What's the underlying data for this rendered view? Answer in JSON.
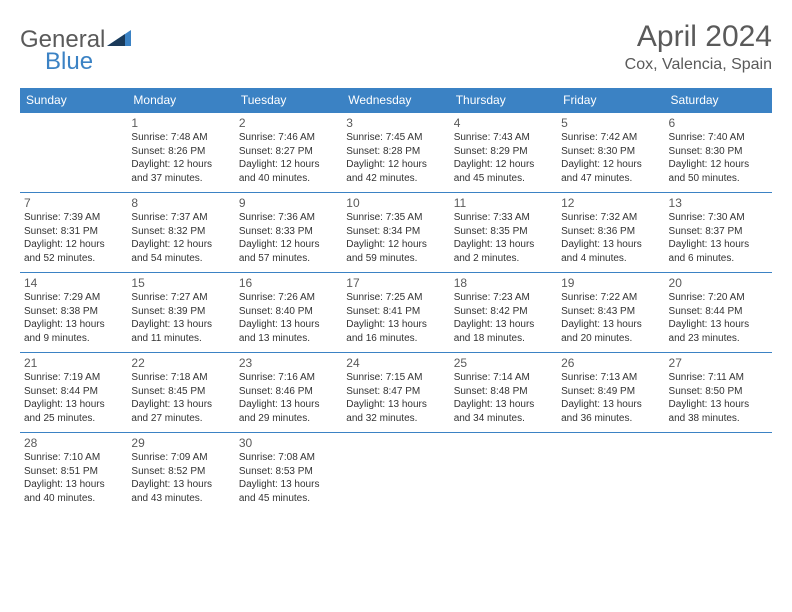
{
  "logo": {
    "text1": "General",
    "text2": "Blue"
  },
  "title": "April 2024",
  "location": "Cox, Valencia, Spain",
  "colors": {
    "accent": "#3b82c4",
    "logo_dark": "#1a3a5a",
    "text_grey": "#5a5a5a",
    "background": "#ffffff"
  },
  "day_headers": [
    "Sunday",
    "Monday",
    "Tuesday",
    "Wednesday",
    "Thursday",
    "Friday",
    "Saturday"
  ],
  "weeks": [
    [
      null,
      {
        "n": "1",
        "sr": "7:48 AM",
        "ss": "8:26 PM",
        "dl": "12 hours and 37 minutes."
      },
      {
        "n": "2",
        "sr": "7:46 AM",
        "ss": "8:27 PM",
        "dl": "12 hours and 40 minutes."
      },
      {
        "n": "3",
        "sr": "7:45 AM",
        "ss": "8:28 PM",
        "dl": "12 hours and 42 minutes."
      },
      {
        "n": "4",
        "sr": "7:43 AM",
        "ss": "8:29 PM",
        "dl": "12 hours and 45 minutes."
      },
      {
        "n": "5",
        "sr": "7:42 AM",
        "ss": "8:30 PM",
        "dl": "12 hours and 47 minutes."
      },
      {
        "n": "6",
        "sr": "7:40 AM",
        "ss": "8:30 PM",
        "dl": "12 hours and 50 minutes."
      }
    ],
    [
      {
        "n": "7",
        "sr": "7:39 AM",
        "ss": "8:31 PM",
        "dl": "12 hours and 52 minutes."
      },
      {
        "n": "8",
        "sr": "7:37 AM",
        "ss": "8:32 PM",
        "dl": "12 hours and 54 minutes."
      },
      {
        "n": "9",
        "sr": "7:36 AM",
        "ss": "8:33 PM",
        "dl": "12 hours and 57 minutes."
      },
      {
        "n": "10",
        "sr": "7:35 AM",
        "ss": "8:34 PM",
        "dl": "12 hours and 59 minutes."
      },
      {
        "n": "11",
        "sr": "7:33 AM",
        "ss": "8:35 PM",
        "dl": "13 hours and 2 minutes."
      },
      {
        "n": "12",
        "sr": "7:32 AM",
        "ss": "8:36 PM",
        "dl": "13 hours and 4 minutes."
      },
      {
        "n": "13",
        "sr": "7:30 AM",
        "ss": "8:37 PM",
        "dl": "13 hours and 6 minutes."
      }
    ],
    [
      {
        "n": "14",
        "sr": "7:29 AM",
        "ss": "8:38 PM",
        "dl": "13 hours and 9 minutes."
      },
      {
        "n": "15",
        "sr": "7:27 AM",
        "ss": "8:39 PM",
        "dl": "13 hours and 11 minutes."
      },
      {
        "n": "16",
        "sr": "7:26 AM",
        "ss": "8:40 PM",
        "dl": "13 hours and 13 minutes."
      },
      {
        "n": "17",
        "sr": "7:25 AM",
        "ss": "8:41 PM",
        "dl": "13 hours and 16 minutes."
      },
      {
        "n": "18",
        "sr": "7:23 AM",
        "ss": "8:42 PM",
        "dl": "13 hours and 18 minutes."
      },
      {
        "n": "19",
        "sr": "7:22 AM",
        "ss": "8:43 PM",
        "dl": "13 hours and 20 minutes."
      },
      {
        "n": "20",
        "sr": "7:20 AM",
        "ss": "8:44 PM",
        "dl": "13 hours and 23 minutes."
      }
    ],
    [
      {
        "n": "21",
        "sr": "7:19 AM",
        "ss": "8:44 PM",
        "dl": "13 hours and 25 minutes."
      },
      {
        "n": "22",
        "sr": "7:18 AM",
        "ss": "8:45 PM",
        "dl": "13 hours and 27 minutes."
      },
      {
        "n": "23",
        "sr": "7:16 AM",
        "ss": "8:46 PM",
        "dl": "13 hours and 29 minutes."
      },
      {
        "n": "24",
        "sr": "7:15 AM",
        "ss": "8:47 PM",
        "dl": "13 hours and 32 minutes."
      },
      {
        "n": "25",
        "sr": "7:14 AM",
        "ss": "8:48 PM",
        "dl": "13 hours and 34 minutes."
      },
      {
        "n": "26",
        "sr": "7:13 AM",
        "ss": "8:49 PM",
        "dl": "13 hours and 36 minutes."
      },
      {
        "n": "27",
        "sr": "7:11 AM",
        "ss": "8:50 PM",
        "dl": "13 hours and 38 minutes."
      }
    ],
    [
      {
        "n": "28",
        "sr": "7:10 AM",
        "ss": "8:51 PM",
        "dl": "13 hours and 40 minutes."
      },
      {
        "n": "29",
        "sr": "7:09 AM",
        "ss": "8:52 PM",
        "dl": "13 hours and 43 minutes."
      },
      {
        "n": "30",
        "sr": "7:08 AM",
        "ss": "8:53 PM",
        "dl": "13 hours and 45 minutes."
      },
      null,
      null,
      null,
      null
    ]
  ],
  "labels": {
    "sunrise": "Sunrise:",
    "sunset": "Sunset:",
    "daylight": "Daylight:"
  }
}
